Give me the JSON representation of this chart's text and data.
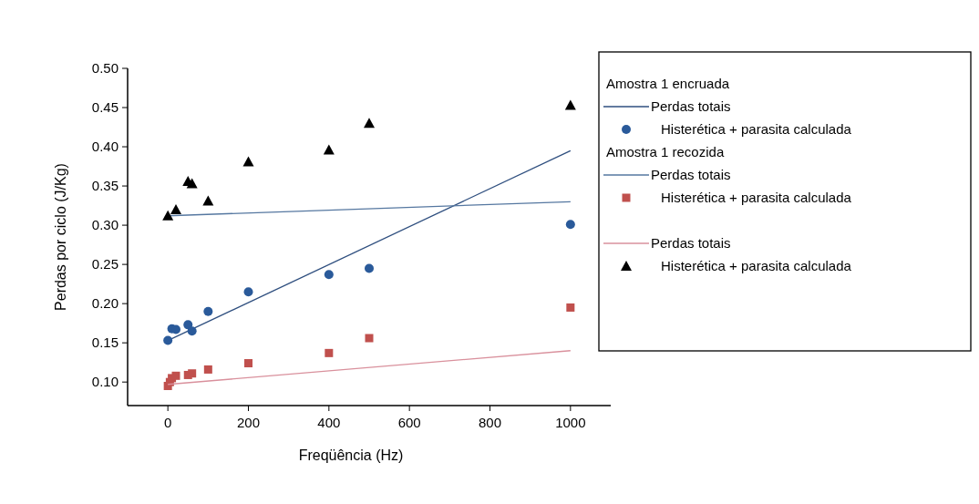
{
  "chart_data": {
    "type": "scatter",
    "xlabel": "Freqüência (Hz)",
    "ylabel": "Perdas por ciclo (J/Kg)",
    "xlim": [
      -100,
      1100
    ],
    "xticks": [
      0,
      200,
      400,
      600,
      800,
      1000
    ],
    "ylim": [
      0.07,
      0.5
    ],
    "yticks": [
      {
        "value": 0.1,
        "label": "0.10"
      },
      {
        "value": 0.15,
        "label": "0.15"
      },
      {
        "value": 0.2,
        "label": "0.20"
      },
      {
        "value": 0.25,
        "label": "0.25"
      },
      {
        "value": 0.3,
        "label": "0.30"
      },
      {
        "value": 0.35,
        "label": "0.35"
      },
      {
        "value": 0.4,
        "label": "0.40"
      },
      {
        "value": 0.45,
        "label": "0.45"
      },
      {
        "value": 0.5,
        "label": "0.50"
      }
    ],
    "grid": false,
    "legend": "right",
    "annotations": [
      "Amostra 1 encruada",
      "Amostra 1 recozida"
    ],
    "series": [
      {
        "name": "Perdas totais",
        "type": "line",
        "color": "#2f4f7f",
        "x": [
          0,
          1000
        ],
        "values": [
          0.153,
          0.395
        ],
        "line_style": "solid"
      },
      {
        "name": "Histerética + parasita calculada",
        "color": "#2a5a9a",
        "marker": "circle",
        "x": [
          0,
          10,
          20,
          50,
          60,
          100,
          200,
          400,
          500,
          1000
        ],
        "values": [
          0.153,
          0.168,
          0.167,
          0.173,
          0.165,
          0.19,
          0.215,
          0.237,
          0.245,
          0.301
        ]
      },
      {
        "name": "Perdas totais",
        "type": "line",
        "color": "#5577a0",
        "x": [
          0,
          1000
        ],
        "values": [
          0.312,
          0.33
        ],
        "line_style": "solid"
      },
      {
        "name": "Histerética + parasita calculada",
        "color": "#c0504d",
        "marker": "square",
        "x": [
          0,
          5,
          10,
          20,
          50,
          60,
          100,
          200,
          400,
          500,
          1000
        ],
        "values": [
          0.095,
          0.1,
          0.105,
          0.108,
          0.109,
          0.111,
          0.116,
          0.124,
          0.137,
          0.156,
          0.195
        ]
      },
      {
        "name": "Perdas totais",
        "type": "line",
        "color": "#d9909c",
        "x": [
          0,
          1000
        ],
        "values": [
          0.097,
          0.14
        ],
        "line_style": "solid"
      },
      {
        "name": "Histerética + parasita calculada",
        "color": "#000000",
        "marker": "triangle",
        "x": [
          0,
          20,
          50,
          60,
          100,
          200,
          400,
          500,
          1000
        ],
        "values": [
          0.312,
          0.32,
          0.356,
          0.353,
          0.331,
          0.381,
          0.396,
          0.43,
          0.453
        ]
      }
    ]
  }
}
